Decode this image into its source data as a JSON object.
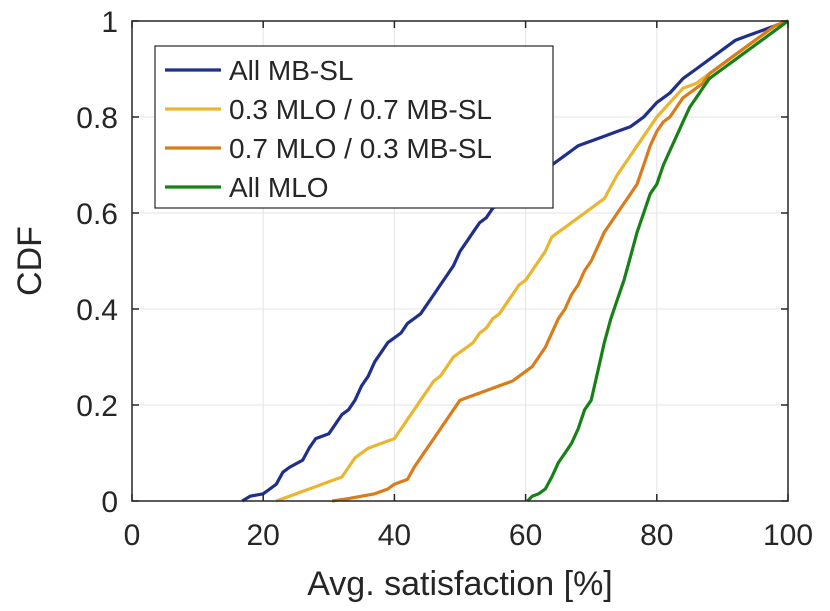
{
  "chart_data": {
    "type": "line",
    "xlabel": "Avg. satisfaction [%]",
    "ylabel": "CDF",
    "xlim": [
      0,
      100
    ],
    "ylim": [
      0,
      1
    ],
    "xticks": [
      0,
      20,
      40,
      60,
      80,
      100
    ],
    "yticks": [
      0,
      0.2,
      0.4,
      0.6,
      0.8,
      1
    ],
    "xtick_labels": [
      "0",
      "20",
      "40",
      "60",
      "80",
      "100"
    ],
    "ytick_labels": [
      "0",
      "0.2",
      "0.4",
      "0.6",
      "0.8",
      "1"
    ],
    "grid": true,
    "legend_position": "top-left",
    "series": [
      {
        "name": "All MB-SL",
        "color": "#1f2f8a",
        "x": [
          16.8,
          18,
          20,
          21,
          22,
          23,
          24,
          26,
          27,
          28,
          30,
          31,
          32,
          33,
          34,
          35,
          36,
          37,
          38,
          39,
          40,
          41,
          42,
          44,
          45,
          46,
          47,
          48,
          49,
          50,
          51,
          52,
          53,
          54,
          55,
          56,
          57,
          58,
          59,
          60,
          61,
          62,
          63,
          64,
          65,
          66,
          67,
          68,
          70,
          72,
          74,
          76,
          78,
          80,
          82,
          84,
          86,
          88,
          90,
          92,
          94,
          96,
          98,
          100
        ],
        "y": [
          0,
          0.01,
          0.015,
          0.025,
          0.035,
          0.06,
          0.07,
          0.085,
          0.11,
          0.13,
          0.14,
          0.16,
          0.18,
          0.19,
          0.21,
          0.24,
          0.26,
          0.29,
          0.31,
          0.33,
          0.34,
          0.35,
          0.37,
          0.39,
          0.41,
          0.43,
          0.45,
          0.47,
          0.49,
          0.52,
          0.54,
          0.56,
          0.58,
          0.59,
          0.61,
          0.62,
          0.63,
          0.64,
          0.65,
          0.66,
          0.67,
          0.68,
          0.69,
          0.7,
          0.71,
          0.72,
          0.73,
          0.74,
          0.75,
          0.76,
          0.77,
          0.78,
          0.8,
          0.83,
          0.85,
          0.88,
          0.9,
          0.92,
          0.94,
          0.96,
          0.97,
          0.98,
          0.99,
          1.0
        ]
      },
      {
        "name": "0.3 MLO / 0.7 MB-SL",
        "color": "#ebb52f",
        "x": [
          22,
          24,
          26,
          28,
          30,
          32,
          33,
          34,
          35,
          36,
          38,
          40,
          41,
          42,
          43,
          44,
          45,
          46,
          47,
          48,
          49,
          50,
          51,
          52,
          53,
          54,
          55,
          56,
          57,
          58,
          59,
          60,
          61,
          62,
          63,
          64,
          65,
          66,
          67,
          68,
          70,
          72,
          74,
          76,
          78,
          80,
          82,
          84,
          86,
          88,
          90,
          92,
          94,
          96,
          98,
          100
        ],
        "y": [
          0,
          0.01,
          0.02,
          0.03,
          0.04,
          0.05,
          0.07,
          0.09,
          0.1,
          0.11,
          0.12,
          0.13,
          0.15,
          0.17,
          0.19,
          0.21,
          0.23,
          0.25,
          0.26,
          0.28,
          0.3,
          0.31,
          0.32,
          0.33,
          0.35,
          0.36,
          0.38,
          0.39,
          0.41,
          0.43,
          0.45,
          0.46,
          0.48,
          0.5,
          0.52,
          0.55,
          0.56,
          0.57,
          0.58,
          0.59,
          0.61,
          0.63,
          0.68,
          0.72,
          0.76,
          0.8,
          0.83,
          0.86,
          0.87,
          0.89,
          0.91,
          0.93,
          0.95,
          0.97,
          0.99,
          1.0
        ]
      },
      {
        "name": "0.7 MLO / 0.3 MB-SL",
        "color": "#d97c1a",
        "x": [
          30.5,
          33,
          35,
          37,
          39,
          40,
          41,
          42,
          43,
          44,
          45,
          46,
          47,
          48,
          49,
          50,
          52,
          54,
          56,
          58,
          60,
          61,
          62,
          63,
          64,
          65,
          66,
          67,
          68,
          69,
          70,
          71,
          72,
          73,
          74,
          75,
          76,
          77,
          78,
          79,
          80,
          81,
          82,
          83,
          84,
          85,
          86,
          87,
          88,
          90,
          92,
          94,
          96,
          98,
          100
        ],
        "y": [
          0,
          0.005,
          0.01,
          0.015,
          0.025,
          0.035,
          0.04,
          0.045,
          0.07,
          0.09,
          0.11,
          0.13,
          0.15,
          0.17,
          0.19,
          0.21,
          0.22,
          0.23,
          0.24,
          0.25,
          0.27,
          0.28,
          0.3,
          0.32,
          0.35,
          0.38,
          0.4,
          0.43,
          0.45,
          0.48,
          0.5,
          0.53,
          0.56,
          0.58,
          0.6,
          0.62,
          0.64,
          0.66,
          0.7,
          0.74,
          0.77,
          0.79,
          0.8,
          0.82,
          0.84,
          0.85,
          0.86,
          0.87,
          0.89,
          0.91,
          0.93,
          0.95,
          0.97,
          0.99,
          1.0
        ]
      },
      {
        "name": "All MLO",
        "color": "#178017",
        "x": [
          60.3,
          61,
          62,
          63,
          64,
          65,
          66,
          67,
          68,
          69,
          70,
          71,
          72,
          73,
          74,
          75,
          76,
          77,
          78,
          79,
          80,
          81,
          82,
          83,
          84,
          85,
          86,
          87,
          88,
          89,
          90,
          92,
          94,
          96,
          98,
          100
        ],
        "y": [
          0,
          0.01,
          0.015,
          0.025,
          0.05,
          0.08,
          0.1,
          0.12,
          0.15,
          0.19,
          0.21,
          0.27,
          0.33,
          0.38,
          0.42,
          0.46,
          0.51,
          0.56,
          0.6,
          0.64,
          0.66,
          0.7,
          0.73,
          0.76,
          0.79,
          0.82,
          0.84,
          0.86,
          0.88,
          0.89,
          0.9,
          0.92,
          0.94,
          0.96,
          0.98,
          1.0
        ]
      }
    ]
  }
}
